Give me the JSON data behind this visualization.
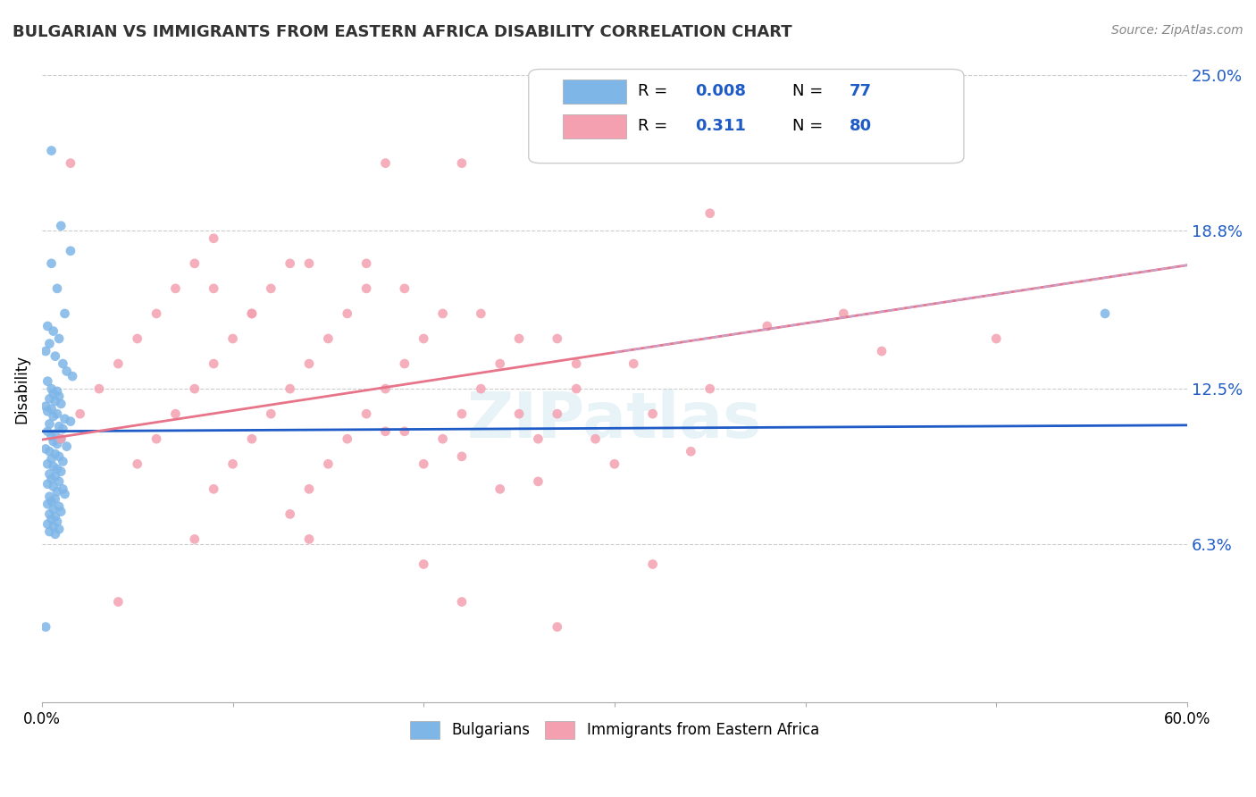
{
  "title": "BULGARIAN VS IMMIGRANTS FROM EASTERN AFRICA DISABILITY CORRELATION CHART",
  "source": "Source: ZipAtlas.com",
  "ylabel": "Disability",
  "xlabel": "",
  "xlim": [
    0.0,
    0.6
  ],
  "ylim": [
    0.0,
    0.25
  ],
  "yticks": [
    0.063,
    0.125,
    0.188,
    0.25
  ],
  "ytick_labels": [
    "6.3%",
    "12.5%",
    "18.8%",
    "25.0%"
  ],
  "xticks": [
    0.0,
    0.1,
    0.2,
    0.3,
    0.4,
    0.5,
    0.6
  ],
  "xtick_labels": [
    "0.0%",
    "",
    "",
    "",
    "",
    "",
    "60.0%"
  ],
  "watermark": "ZIPatlas",
  "blue_color": "#7EB6E8",
  "pink_color": "#F4A0B0",
  "blue_line_color": "#1E5BC6",
  "pink_line_color": "#E8748A",
  "dashed_line_color": "#C8A0C8",
  "legend_r1": "R = 0.008",
  "legend_n1": "N = 77",
  "legend_r2": "R =  0.311",
  "legend_n2": "N = 80",
  "legend_label1": "Bulgarians",
  "legend_label2": "Immigrants from Eastern Africa",
  "bulgarians_x": [
    0.005,
    0.01,
    0.015,
    0.005,
    0.008,
    0.012,
    0.003,
    0.006,
    0.009,
    0.004,
    0.002,
    0.007,
    0.011,
    0.013,
    0.016,
    0.003,
    0.005,
    0.008,
    0.006,
    0.009,
    0.004,
    0.007,
    0.01,
    0.002,
    0.005,
    0.003,
    0.008,
    0.006,
    0.012,
    0.015,
    0.004,
    0.009,
    0.011,
    0.003,
    0.007,
    0.005,
    0.01,
    0.006,
    0.008,
    0.013,
    0.002,
    0.004,
    0.007,
    0.009,
    0.005,
    0.011,
    0.003,
    0.006,
    0.008,
    0.01,
    0.004,
    0.007,
    0.005,
    0.009,
    0.003,
    0.006,
    0.011,
    0.008,
    0.012,
    0.004,
    0.007,
    0.005,
    0.003,
    0.009,
    0.006,
    0.01,
    0.004,
    0.007,
    0.005,
    0.008,
    0.003,
    0.006,
    0.009,
    0.004,
    0.007,
    0.557,
    0.002
  ],
  "bulgarians_y": [
    0.22,
    0.19,
    0.18,
    0.175,
    0.165,
    0.155,
    0.15,
    0.148,
    0.145,
    0.143,
    0.14,
    0.138,
    0.135,
    0.132,
    0.13,
    0.128,
    0.125,
    0.124,
    0.123,
    0.122,
    0.121,
    0.12,
    0.119,
    0.118,
    0.117,
    0.116,
    0.115,
    0.114,
    0.113,
    0.112,
    0.111,
    0.11,
    0.109,
    0.108,
    0.107,
    0.106,
    0.105,
    0.104,
    0.103,
    0.102,
    0.101,
    0.1,
    0.099,
    0.098,
    0.097,
    0.096,
    0.095,
    0.094,
    0.093,
    0.092,
    0.091,
    0.09,
    0.089,
    0.088,
    0.087,
    0.086,
    0.085,
    0.084,
    0.083,
    0.082,
    0.081,
    0.08,
    0.079,
    0.078,
    0.077,
    0.076,
    0.075,
    0.074,
    0.073,
    0.072,
    0.071,
    0.07,
    0.069,
    0.068,
    0.067,
    0.155,
    0.03
  ],
  "immigrants_x": [
    0.015,
    0.18,
    0.22,
    0.35,
    0.09,
    0.13,
    0.17,
    0.21,
    0.25,
    0.28,
    0.14,
    0.09,
    0.11,
    0.17,
    0.19,
    0.23,
    0.27,
    0.31,
    0.35,
    0.08,
    0.12,
    0.16,
    0.2,
    0.24,
    0.28,
    0.32,
    0.07,
    0.11,
    0.15,
    0.19,
    0.23,
    0.27,
    0.06,
    0.1,
    0.14,
    0.18,
    0.22,
    0.26,
    0.3,
    0.05,
    0.09,
    0.13,
    0.17,
    0.21,
    0.04,
    0.08,
    0.12,
    0.16,
    0.2,
    0.24,
    0.03,
    0.07,
    0.11,
    0.15,
    0.25,
    0.29,
    0.02,
    0.06,
    0.1,
    0.14,
    0.18,
    0.22,
    0.26,
    0.01,
    0.05,
    0.09,
    0.13,
    0.42,
    0.38,
    0.5,
    0.34,
    0.44,
    0.19,
    0.08,
    0.14,
    0.2,
    0.32,
    0.04,
    0.22,
    0.27
  ],
  "immigrants_y": [
    0.215,
    0.215,
    0.215,
    0.195,
    0.185,
    0.175,
    0.165,
    0.155,
    0.145,
    0.135,
    0.175,
    0.165,
    0.155,
    0.175,
    0.165,
    0.155,
    0.145,
    0.135,
    0.125,
    0.175,
    0.165,
    0.155,
    0.145,
    0.135,
    0.125,
    0.115,
    0.165,
    0.155,
    0.145,
    0.135,
    0.125,
    0.115,
    0.155,
    0.145,
    0.135,
    0.125,
    0.115,
    0.105,
    0.095,
    0.145,
    0.135,
    0.125,
    0.115,
    0.105,
    0.135,
    0.125,
    0.115,
    0.105,
    0.095,
    0.085,
    0.125,
    0.115,
    0.105,
    0.095,
    0.115,
    0.105,
    0.115,
    0.105,
    0.095,
    0.085,
    0.108,
    0.098,
    0.088,
    0.105,
    0.095,
    0.085,
    0.075,
    0.155,
    0.15,
    0.145,
    0.1,
    0.14,
    0.108,
    0.065,
    0.065,
    0.055,
    0.055,
    0.04,
    0.04,
    0.03
  ]
}
